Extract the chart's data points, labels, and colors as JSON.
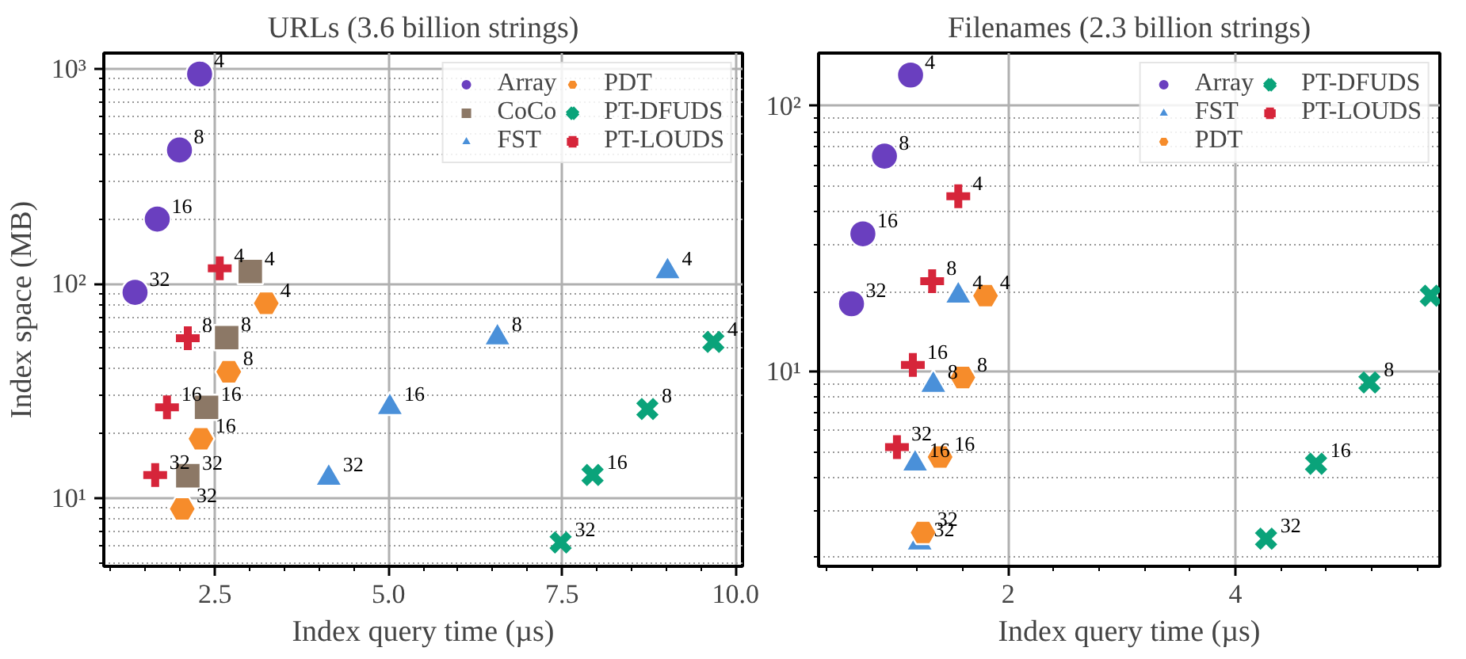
{
  "chart_data": [
    {
      "type": "scatter",
      "title": "URLs (3.6 billion strings)",
      "xlabel": "Index query time (µs)",
      "ylabel": "Index space (MB)",
      "log": "y",
      "grid": true,
      "legend": "top right",
      "xlim": [
        0.9,
        10.1
      ],
      "xticks": [
        {
          "value": 2.5,
          "label": "2.5"
        },
        {
          "value": 5.0,
          "label": "5.0"
        },
        {
          "value": 7.5,
          "label": "7.5"
        },
        {
          "value": 10.0,
          "label": "10.0"
        }
      ],
      "ylim": [
        4.8,
        1190
      ],
      "yticks": [
        {
          "value": 10,
          "label": "10¹"
        },
        {
          "value": 100,
          "label": "10²"
        },
        {
          "value": 1000,
          "label": "10³"
        }
      ],
      "series": [
        {
          "name": "Array",
          "color": "#6a3fbf",
          "marker": "circle",
          "x": [
            2.28,
            1.99,
            1.67,
            1.35
          ],
          "values": [
            950,
            420,
            200,
            91
          ]
        },
        {
          "name": "CoCo",
          "color": "#8c7866",
          "marker": "square",
          "x": [
            3.01,
            2.67,
            2.38,
            2.11
          ],
          "values": [
            114,
            56,
            26.5,
            12.7
          ]
        },
        {
          "name": "FST",
          "color": "#4a90d9",
          "marker": "triangle",
          "x": [
            9.02,
            6.57,
            5.02,
            4.14
          ],
          "values": [
            114,
            56,
            26.5,
            12.4
          ]
        },
        {
          "name": "PDT",
          "color": "#f68c2b",
          "x": [
            3.24,
            2.7,
            2.3,
            2.03
          ],
          "values": [
            81,
            38.8,
            18.9,
            8.9
          ]
        },
        {
          "name": "PT-DFUDS",
          "color": "#0aa37a",
          "marker": "cross",
          "x": [
            9.68,
            8.73,
            7.94,
            7.48
          ],
          "values": [
            53.5,
            26,
            12.8,
            6.2
          ]
        },
        {
          "name": "PT-LOUDS",
          "color": "#d6253a",
          "marker": "plus",
          "x": [
            2.57,
            2.11,
            1.81,
            1.64
          ],
          "values": [
            118,
            55.6,
            26.5,
            12.8
          ]
        }
      ],
      "annotations": [
        {
          "text": "4",
          "x": 2.28,
          "y": 950
        },
        {
          "text": "8",
          "x": 1.99,
          "y": 420
        },
        {
          "text": "16",
          "x": 1.67,
          "y": 200
        },
        {
          "text": "32",
          "x": 1.35,
          "y": 91
        },
        {
          "text": "4",
          "x": 3.01,
          "y": 114
        },
        {
          "text": "8",
          "x": 2.67,
          "y": 56
        },
        {
          "text": "16",
          "x": 2.38,
          "y": 26.5
        },
        {
          "text": "32",
          "x": 2.11,
          "y": 12.7
        },
        {
          "text": "4",
          "x": 9.02,
          "y": 114
        },
        {
          "text": "8",
          "x": 6.57,
          "y": 56
        },
        {
          "text": "16",
          "x": 5.02,
          "y": 26.5
        },
        {
          "text": "32",
          "x": 4.14,
          "y": 12.4
        },
        {
          "text": "4",
          "x": 3.24,
          "y": 81
        },
        {
          "text": "8",
          "x": 2.7,
          "y": 38.8
        },
        {
          "text": "16",
          "x": 2.3,
          "y": 18.9
        },
        {
          "text": "32",
          "x": 2.03,
          "y": 8.9
        },
        {
          "text": "4",
          "x": 9.68,
          "y": 53.5
        },
        {
          "text": "8",
          "x": 8.73,
          "y": 26
        },
        {
          "text": "16",
          "x": 7.94,
          "y": 12.8
        },
        {
          "text": "32",
          "x": 7.48,
          "y": 6.2
        },
        {
          "text": "4",
          "x": 2.57,
          "y": 118
        },
        {
          "text": "8",
          "x": 2.11,
          "y": 55.6
        },
        {
          "text": "16",
          "x": 1.81,
          "y": 26.5
        },
        {
          "text": "32",
          "x": 1.64,
          "y": 12.8
        }
      ]
    },
    {
      "type": "scatter",
      "title": "Filenames (2.3 billion strings)",
      "xlabel": "Index query time (µs)",
      "log": "y",
      "grid": true,
      "legend": "top right",
      "xlim": [
        0.33,
        5.8
      ],
      "xticks": [
        2,
        4
      ],
      "ylim": [
        1.85,
        158
      ],
      "yticks": [
        {
          "value": 10,
          "label": "10¹"
        },
        {
          "value": 100,
          "label": "10²"
        }
      ],
      "series": [
        {
          "name": "Array",
          "color": "#6a3fbf",
          "marker": "circle",
          "x": [
            1.14,
            0.91,
            0.72,
            0.62
          ],
          "values": [
            130.6,
            64.7,
            33,
            18
          ]
        },
        {
          "name": "FST",
          "color": "#4a90d9",
          "marker": "triangle",
          "x": [
            1.56,
            1.34,
            1.18,
            1.22
          ],
          "values": [
            19.3,
            8.9,
            4.5,
            2.27
          ]
        },
        {
          "name": "PDT",
          "color": "#f68c2b",
          "x": [
            1.8,
            1.6,
            1.4,
            1.25
          ],
          "values": [
            19.3,
            9.5,
            4.77,
            2.48
          ]
        },
        {
          "name": "PT-DFUDS",
          "color": "#0aa37a",
          "marker": "cross",
          "x": [
            5.72,
            5.18,
            4.71,
            4.27
          ],
          "values": [
            19.3,
            9.1,
            4.5,
            2.35
          ]
        },
        {
          "name": "PT-LOUDS",
          "color": "#d6253a",
          "marker": "plus",
          "x": [
            1.56,
            1.33,
            1.16,
            1.02
          ],
          "values": [
            45.7,
            21.9,
            10.6,
            5.2
          ]
        }
      ],
      "annotations": [
        {
          "text": "4",
          "x": 1.14,
          "y": 130.6
        },
        {
          "text": "8",
          "x": 0.91,
          "y": 64.7
        },
        {
          "text": "16",
          "x": 0.72,
          "y": 33
        },
        {
          "text": "32",
          "x": 0.62,
          "y": 18
        },
        {
          "text": "4",
          "x": 1.56,
          "y": 19.3
        },
        {
          "text": "8",
          "x": 1.34,
          "y": 8.9
        },
        {
          "text": "16",
          "x": 1.18,
          "y": 4.5
        },
        {
          "text": "32",
          "x": 1.22,
          "y": 2.27
        },
        {
          "text": "4",
          "x": 1.8,
          "y": 19.3
        },
        {
          "text": "8",
          "x": 1.6,
          "y": 9.5
        },
        {
          "text": "16",
          "x": 1.4,
          "y": 4.77
        },
        {
          "text": "32",
          "x": 1.25,
          "y": 2.48
        },
        {
          "text": "8",
          "x": 5.18,
          "y": 9.1
        },
        {
          "text": "16",
          "x": 4.71,
          "y": 4.5
        },
        {
          "text": "32",
          "x": 4.27,
          "y": 2.35
        },
        {
          "text": "4",
          "x": 1.56,
          "y": 45.7
        },
        {
          "text": "8",
          "x": 1.33,
          "y": 21.9
        },
        {
          "text": "16",
          "x": 1.16,
          "y": 10.6
        },
        {
          "text": "32",
          "x": 1.02,
          "y": 5.2
        }
      ]
    }
  ]
}
